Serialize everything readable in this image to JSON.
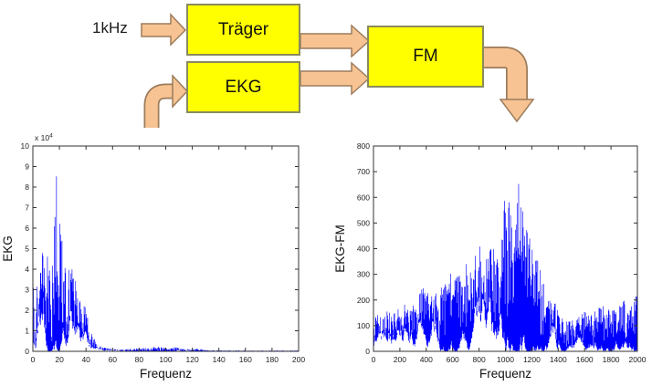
{
  "diagram": {
    "input_label": "1kHz",
    "blocks": [
      {
        "id": "traeger",
        "label": "Träger"
      },
      {
        "id": "ekg",
        "label": "EKG"
      },
      {
        "id": "fm",
        "label": "FM"
      }
    ],
    "connections": [
      {
        "from": "1kHz",
        "to": "Träger"
      },
      {
        "from": "Träger",
        "to": "FM"
      },
      {
        "from": "EKG",
        "to": "FM"
      },
      {
        "from": "external",
        "to": "EKG"
      },
      {
        "from": "FM",
        "to": "output"
      }
    ],
    "colors": {
      "block_fill": "#ffff00",
      "block_border": "#8a8a5e",
      "arrow_fill": "#f7c392",
      "arrow_border": "#9c7c5c"
    }
  },
  "chart_data": [
    {
      "type": "line",
      "title": "",
      "ylabel": "EKG",
      "xlabel": "Frequenz",
      "y_scale_base": "x 10",
      "y_scale_exp": "4",
      "xlim": [
        0,
        200
      ],
      "ylim": [
        0,
        10
      ],
      "xticks": [
        0,
        20,
        40,
        60,
        80,
        100,
        120,
        140,
        160,
        180,
        200
      ],
      "yticks": [
        0,
        1,
        2,
        3,
        4,
        5,
        6,
        7,
        8,
        9,
        10
      ],
      "line_color": "#0000ff",
      "axis_color": "#333333",
      "grid": false,
      "legend": null,
      "description": "Noisy EKG magnitude spectrum, values in units of 10^4; envelope points [frequency, amplitude]",
      "envelope": [
        [
          0,
          7.3
        ],
        [
          1,
          2.2
        ],
        [
          2,
          1.2
        ],
        [
          3,
          3.2
        ],
        [
          4,
          2.6
        ],
        [
          5,
          5.3
        ],
        [
          6,
          4.0
        ],
        [
          7,
          4.6
        ],
        [
          8,
          6.3
        ],
        [
          9,
          4.4
        ],
        [
          10,
          4.0
        ],
        [
          11,
          4.7
        ],
        [
          12,
          3.6
        ],
        [
          13,
          4.3
        ],
        [
          14,
          3.4
        ],
        [
          15,
          4.9
        ],
        [
          16,
          6.1
        ],
        [
          17,
          8.0
        ],
        [
          18,
          8.7
        ],
        [
          19,
          6.2
        ],
        [
          20,
          8.4
        ],
        [
          21,
          7.3
        ],
        [
          22,
          5.9
        ],
        [
          23,
          5.0
        ],
        [
          24,
          4.6
        ],
        [
          25,
          4.0
        ],
        [
          26,
          3.7
        ],
        [
          27,
          4.0
        ],
        [
          28,
          4.6
        ],
        [
          29,
          4.7
        ],
        [
          30,
          4.2
        ],
        [
          31,
          3.6
        ],
        [
          32,
          4.4
        ],
        [
          33,
          3.4
        ],
        [
          34,
          3.0
        ],
        [
          35,
          2.7
        ],
        [
          36,
          2.3
        ],
        [
          37,
          2.1
        ],
        [
          38,
          2.0
        ],
        [
          39,
          2.4
        ],
        [
          40,
          2.2
        ],
        [
          41,
          1.7
        ],
        [
          42,
          1.4
        ],
        [
          43,
          1.2
        ],
        [
          44,
          1.0
        ],
        [
          45,
          0.8
        ],
        [
          46,
          0.7
        ],
        [
          47,
          0.55
        ],
        [
          48,
          0.45
        ],
        [
          50,
          0.3
        ],
        [
          52,
          0.22
        ],
        [
          55,
          0.18
        ],
        [
          58,
          0.14
        ],
        [
          60,
          0.12
        ],
        [
          65,
          0.1
        ],
        [
          70,
          0.12
        ],
        [
          75,
          0.1
        ],
        [
          80,
          0.16
        ],
        [
          85,
          0.18
        ],
        [
          88,
          0.14
        ],
        [
          90,
          0.2
        ],
        [
          95,
          0.22
        ],
        [
          100,
          0.18
        ],
        [
          105,
          0.2
        ],
        [
          108,
          0.22
        ],
        [
          112,
          0.18
        ],
        [
          115,
          0.12
        ],
        [
          120,
          0.1
        ],
        [
          125,
          0.14
        ],
        [
          130,
          0.06
        ],
        [
          140,
          0.05
        ],
        [
          150,
          0.04
        ],
        [
          160,
          0.04
        ],
        [
          170,
          0.04
        ],
        [
          180,
          0.04
        ],
        [
          190,
          0.04
        ],
        [
          200,
          0.05
        ]
      ]
    },
    {
      "type": "line",
      "title": "",
      "ylabel": "EKG-FM",
      "xlabel": "Frequenz",
      "y_scale_base": null,
      "y_scale_exp": null,
      "xlim": [
        0,
        2000
      ],
      "ylim": [
        0,
        800
      ],
      "xticks": [
        0,
        200,
        400,
        600,
        800,
        1000,
        1200,
        1400,
        1600,
        1800,
        2000
      ],
      "yticks": [
        0,
        100,
        200,
        300,
        400,
        500,
        600,
        700,
        800
      ],
      "line_color": "#0000ff",
      "axis_color": "#333333",
      "grid": false,
      "legend": null,
      "description": "Noisy FM-modulated EKG spectrum centered near 1000 Hz carrier; envelope points [frequency, amplitude]",
      "envelope": [
        [
          0,
          120
        ],
        [
          30,
          150
        ],
        [
          50,
          140
        ],
        [
          100,
          160
        ],
        [
          150,
          150
        ],
        [
          200,
          170
        ],
        [
          230,
          220
        ],
        [
          250,
          160
        ],
        [
          300,
          180
        ],
        [
          350,
          230
        ],
        [
          380,
          260
        ],
        [
          400,
          250
        ],
        [
          420,
          255
        ],
        [
          450,
          230
        ],
        [
          500,
          250
        ],
        [
          550,
          280
        ],
        [
          600,
          320
        ],
        [
          650,
          310
        ],
        [
          700,
          360
        ],
        [
          720,
          310
        ],
        [
          750,
          340
        ],
        [
          800,
          420
        ],
        [
          850,
          400
        ],
        [
          870,
          430
        ],
        [
          900,
          410
        ],
        [
          930,
          390
        ],
        [
          950,
          420
        ],
        [
          970,
          460
        ],
        [
          990,
          560
        ],
        [
          1000,
          710
        ],
        [
          1010,
          660
        ],
        [
          1020,
          590
        ],
        [
          1040,
          600
        ],
        [
          1060,
          470
        ],
        [
          1080,
          520
        ],
        [
          1100,
          690
        ],
        [
          1110,
          640
        ],
        [
          1120,
          580
        ],
        [
          1140,
          520
        ],
        [
          1160,
          480
        ],
        [
          1180,
          450
        ],
        [
          1200,
          420
        ],
        [
          1220,
          380
        ],
        [
          1250,
          350
        ],
        [
          1280,
          310
        ],
        [
          1300,
          260
        ],
        [
          1320,
          230
        ],
        [
          1350,
          200
        ],
        [
          1380,
          190
        ],
        [
          1400,
          170
        ],
        [
          1420,
          140
        ],
        [
          1450,
          120
        ],
        [
          1500,
          120
        ],
        [
          1550,
          130
        ],
        [
          1600,
          160
        ],
        [
          1650,
          150
        ],
        [
          1700,
          170
        ],
        [
          1750,
          180
        ],
        [
          1800,
          160
        ],
        [
          1850,
          170
        ],
        [
          1900,
          200
        ],
        [
          1950,
          210
        ],
        [
          2000,
          230
        ]
      ]
    }
  ]
}
